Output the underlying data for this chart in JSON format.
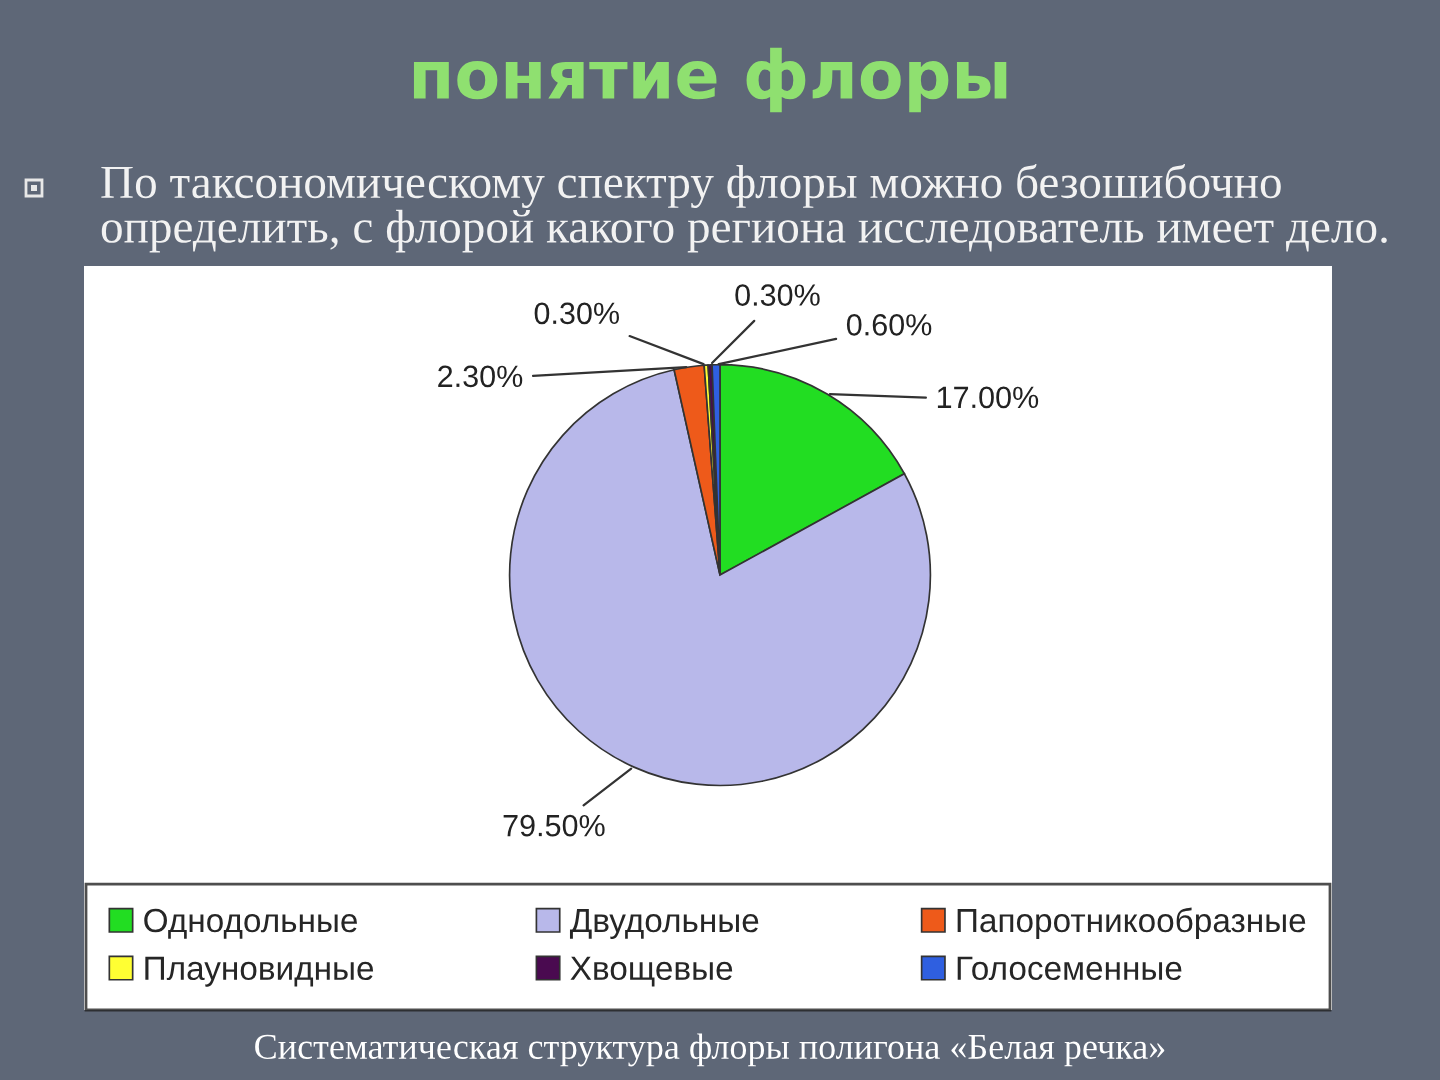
{
  "chart_data": {
    "type": "pie",
    "title": "понятие флоры",
    "subtitle": "По таксономическому спектру флоры можно безошибочно определить, с флорой какого региона исследователь имеет дело.",
    "categories": [
      "Однодольные",
      "Двудольные",
      "Папоротникообразные",
      "Плауновидные",
      "Хвощевые",
      "Голосеменные"
    ],
    "values": [
      17,
      79.5,
      2.3,
      0.3,
      0.3,
      0.6
    ],
    "value_labels": [
      "17.00%",
      "79.50%",
      "2.30%",
      "0.30%",
      "0.30%",
      "0.60%"
    ],
    "colors": [
      "#22dd22",
      "#b8b8ea",
      "#ee5a1a",
      "#ffff33",
      "#4a0a50",
      "#2f5fe0"
    ],
    "legend": "bottom",
    "annotations": [
      "Систематическая структура флоры полигона «Белая речка»"
    ]
  }
}
